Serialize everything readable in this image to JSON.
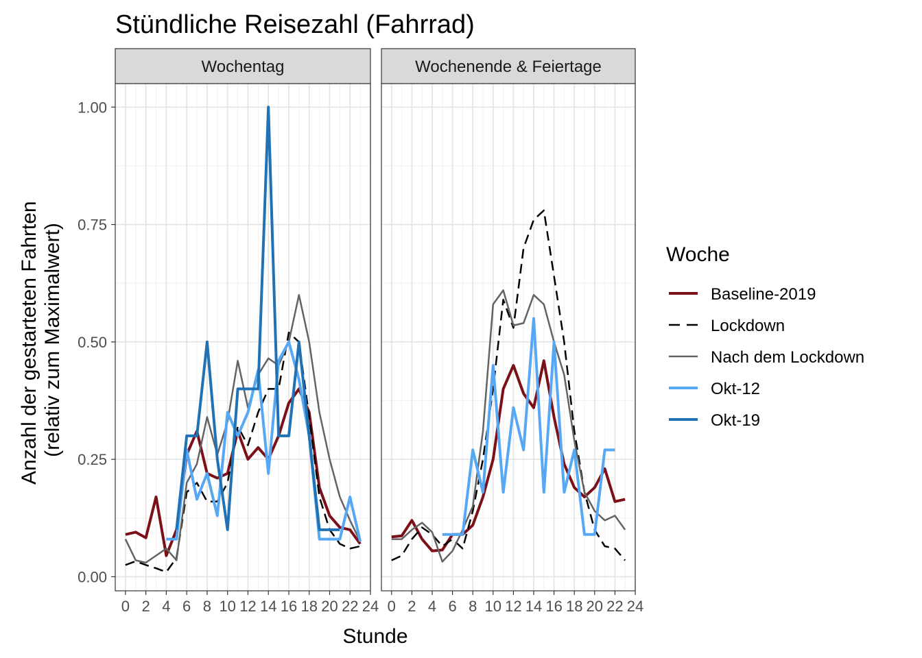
{
  "chart_data": {
    "type": "line",
    "title": "Stündliche Reisezahl (Fahrrad)",
    "xlabel": "Stunde",
    "ylabel_lines": [
      "Anzahl der gestarteten Fahrten",
      "(relativ zum Maximalwert)"
    ],
    "xlim": [
      -1,
      24
    ],
    "ylim": [
      -0.03,
      1.05
    ],
    "x_ticks": [
      0,
      2,
      4,
      6,
      8,
      10,
      12,
      14,
      16,
      18,
      20,
      22,
      24
    ],
    "y_ticks": [
      0.0,
      0.25,
      0.5,
      0.75,
      1.0
    ],
    "y_tick_labels": [
      "0.00",
      "0.25",
      "0.50",
      "0.75",
      "1.00"
    ],
    "grid": true,
    "legend_position": "right",
    "legend_title": "Woche",
    "series_styles": [
      {
        "name": "Baseline-2019",
        "color": "#7b1018",
        "dash": "solid",
        "weight": "thick"
      },
      {
        "name": "Lockdown",
        "color": "#000000",
        "dash": "dashed",
        "weight": "thin"
      },
      {
        "name": "Nach dem Lockdown",
        "color": "#636363",
        "dash": "solid",
        "weight": "thin"
      },
      {
        "name": "Okt-12",
        "color": "#56a8f5",
        "dash": "solid",
        "weight": "thick"
      },
      {
        "name": "Okt-19",
        "color": "#2171b5",
        "dash": "solid",
        "weight": "thick"
      }
    ],
    "panels": [
      {
        "strip": "Wochentag",
        "series": [
          {
            "name": "Baseline-2019",
            "x": [
              0,
              1,
              2,
              3,
              4,
              5,
              6,
              7,
              8,
              9,
              10,
              11,
              12,
              13,
              14,
              15,
              16,
              17,
              18,
              19,
              20,
              21,
              22,
              23
            ],
            "values": [
              0.09,
              0.095,
              0.083,
              0.17,
              0.045,
              0.1,
              0.26,
              0.31,
              0.22,
              0.21,
              0.22,
              0.31,
              0.25,
              0.275,
              0.25,
              0.3,
              0.37,
              0.4,
              0.35,
              0.19,
              0.13,
              0.105,
              0.1,
              0.07
            ]
          },
          {
            "name": "Lockdown",
            "x": [
              0,
              1,
              2,
              3,
              4,
              5,
              6,
              7,
              8,
              9,
              10,
              11,
              12,
              13,
              14,
              15,
              16,
              17,
              18,
              19,
              20,
              21,
              22,
              23
            ],
            "values": [
              0.025,
              0.033,
              0.025,
              0.018,
              0.01,
              0.04,
              0.18,
              0.2,
              0.16,
              0.16,
              0.2,
              0.32,
              0.28,
              0.35,
              0.4,
              0.4,
              0.52,
              0.5,
              0.34,
              0.17,
              0.1,
              0.07,
              0.06,
              0.065
            ]
          },
          {
            "name": "Nach dem Lockdown",
            "x": [
              0,
              1,
              2,
              3,
              4,
              5,
              6,
              7,
              8,
              9,
              10,
              11,
              12,
              13,
              14,
              15,
              16,
              17,
              18,
              19,
              20,
              21,
              22,
              23
            ],
            "values": [
              0.08,
              0.035,
              0.03,
              0.045,
              0.06,
              0.035,
              0.2,
              0.24,
              0.34,
              0.26,
              0.33,
              0.46,
              0.36,
              0.43,
              0.465,
              0.45,
              0.5,
              0.6,
              0.5,
              0.35,
              0.25,
              0.17,
              0.12,
              0.075
            ]
          },
          {
            "name": "Okt-12",
            "x": [
              4,
              5,
              6,
              7,
              8,
              9,
              10,
              11,
              12,
              13,
              14,
              15,
              16,
              17,
              18,
              19,
              20,
              21,
              22,
              23
            ],
            "values": [
              0.08,
              0.08,
              0.27,
              0.165,
              0.22,
              0.13,
              0.35,
              0.3,
              0.35,
              0.44,
              0.22,
              0.46,
              0.5,
              0.42,
              0.3,
              0.08,
              0.08,
              0.08,
              0.17,
              0.075
            ]
          },
          {
            "name": "Okt-19",
            "x": [
              5,
              6,
              7,
              8,
              9,
              10,
              11,
              12,
              13,
              14,
              15,
              16,
              17,
              18,
              19,
              20,
              21
            ],
            "values": [
              0.1,
              0.3,
              0.3,
              0.5,
              0.25,
              0.1,
              0.4,
              0.4,
              0.4,
              1.0,
              0.3,
              0.3,
              0.5,
              0.3,
              0.1,
              0.1,
              0.1
            ]
          }
        ]
      },
      {
        "strip": "Wochenende & Feiertage",
        "series": [
          {
            "name": "Baseline-2019",
            "x": [
              0,
              1,
              2,
              3,
              4,
              5,
              6,
              7,
              8,
              9,
              10,
              11,
              12,
              13,
              14,
              15,
              16,
              17,
              18,
              19,
              20,
              21,
              22,
              23
            ],
            "values": [
              0.085,
              0.087,
              0.12,
              0.08,
              0.055,
              0.057,
              0.09,
              0.09,
              0.11,
              0.17,
              0.25,
              0.4,
              0.45,
              0.39,
              0.36,
              0.46,
              0.34,
              0.24,
              0.19,
              0.17,
              0.19,
              0.23,
              0.16,
              0.165
            ]
          },
          {
            "name": "Lockdown",
            "x": [
              0,
              1,
              2,
              3,
              4,
              5,
              6,
              7,
              8,
              9,
              10,
              11,
              12,
              13,
              14,
              15,
              16,
              17,
              18,
              19,
              20,
              21,
              22,
              23
            ],
            "values": [
              0.035,
              0.045,
              0.08,
              0.105,
              0.09,
              0.065,
              0.08,
              0.06,
              0.14,
              0.25,
              0.4,
              0.59,
              0.53,
              0.7,
              0.76,
              0.78,
              0.64,
              0.5,
              0.31,
              0.18,
              0.1,
              0.065,
              0.06,
              0.035
            ]
          },
          {
            "name": "Nach dem Lockdown",
            "x": [
              0,
              1,
              2,
              3,
              4,
              5,
              6,
              7,
              8,
              9,
              10,
              11,
              12,
              13,
              14,
              15,
              16,
              17,
              18,
              19,
              20,
              21,
              22,
              23
            ],
            "values": [
              0.08,
              0.08,
              0.1,
              0.115,
              0.095,
              0.032,
              0.055,
              0.1,
              0.15,
              0.31,
              0.58,
              0.61,
              0.535,
              0.54,
              0.6,
              0.58,
              0.5,
              0.43,
              0.29,
              0.18,
              0.14,
              0.12,
              0.13,
              0.1
            ]
          },
          {
            "name": "Okt-12",
            "x": [
              5,
              6,
              7,
              8,
              9,
              10,
              11,
              12,
              13,
              14,
              15,
              16,
              17,
              18,
              19,
              20,
              21,
              22
            ],
            "values": [
              0.09,
              0.09,
              0.09,
              0.27,
              0.18,
              0.45,
              0.18,
              0.36,
              0.27,
              0.55,
              0.18,
              0.5,
              0.18,
              0.27,
              0.09,
              0.09,
              0.27,
              0.27
            ]
          }
        ]
      }
    ]
  }
}
